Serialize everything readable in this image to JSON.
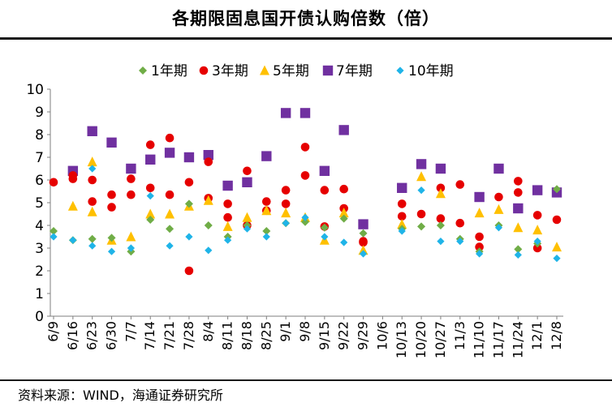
{
  "chart_data": {
    "type": "scatter",
    "title": "各期限固息国开债认购倍数（倍）",
    "categories": [
      "6/9",
      "6/16",
      "6/23",
      "6/30",
      "7/7",
      "7/14",
      "7/21",
      "7/28",
      "8/4",
      "8/11",
      "8/18",
      "8/25",
      "9/1",
      "9/8",
      "9/15",
      "9/22",
      "9/29",
      "10/6",
      "10/13",
      "10/20",
      "10/27",
      "11/3",
      "11/10",
      "11/17",
      "11/24",
      "12/1",
      "12/8"
    ],
    "ylim": [
      0,
      10
    ],
    "yticks": [
      "0",
      "1",
      "2",
      "3",
      "4",
      "5",
      "6",
      "7",
      "8",
      "9",
      "10"
    ],
    "legend_position": "top",
    "colors": {
      "1y": "#70ad47",
      "3y": "#e60000",
      "5y": "#ffc000",
      "7y": "#7030a0",
      "10y": "#1fb4e8"
    },
    "series": [
      {
        "key": "1y",
        "name": "1年期",
        "marker": "diamond",
        "points": [
          [
            0,
            3.75
          ],
          [
            1,
            3.35
          ],
          [
            2,
            3.4
          ],
          [
            3,
            3.45
          ],
          [
            4,
            2.85
          ],
          [
            5,
            4.25
          ],
          [
            6,
            3.85
          ],
          [
            7,
            4.95
          ],
          [
            8,
            4.0
          ],
          [
            9,
            3.5
          ],
          [
            10,
            4.0
          ],
          [
            11,
            3.75
          ],
          [
            12,
            4.1
          ],
          [
            13,
            4.15
          ],
          [
            14,
            3.9
          ],
          [
            15,
            4.3
          ],
          [
            16,
            3.65
          ],
          [
            18,
            3.85
          ],
          [
            19,
            3.95
          ],
          [
            20,
            4.0
          ],
          [
            21,
            3.4
          ],
          [
            22,
            2.85
          ],
          [
            23,
            4.0
          ],
          [
            24,
            2.95
          ],
          [
            25,
            3.2
          ],
          [
            26,
            5.6
          ]
        ]
      },
      {
        "key": "3y",
        "name": "3年期",
        "marker": "circle",
        "points": [
          [
            0,
            5.9
          ],
          [
            1,
            6.05
          ],
          [
            1,
            6.2
          ],
          [
            2,
            6.0
          ],
          [
            2,
            5.05
          ],
          [
            3,
            4.8
          ],
          [
            3,
            5.35
          ],
          [
            4,
            6.05
          ],
          [
            4,
            5.35
          ],
          [
            5,
            5.65
          ],
          [
            5,
            7.55
          ],
          [
            6,
            7.85
          ],
          [
            6,
            5.35
          ],
          [
            7,
            5.9
          ],
          [
            7,
            2.0
          ],
          [
            8,
            6.8
          ],
          [
            8,
            5.2
          ],
          [
            9,
            4.35
          ],
          [
            9,
            4.95
          ],
          [
            10,
            6.4
          ],
          [
            10,
            4.0
          ],
          [
            11,
            5.05
          ],
          [
            11,
            4.65
          ],
          [
            12,
            5.55
          ],
          [
            12,
            4.95
          ],
          [
            13,
            6.2
          ],
          [
            13,
            7.45
          ],
          [
            14,
            5.55
          ],
          [
            14,
            3.95
          ],
          [
            15,
            5.6
          ],
          [
            15,
            4.75
          ],
          [
            16,
            3.3
          ],
          [
            16,
            3.25
          ],
          [
            18,
            4.95
          ],
          [
            18,
            4.4
          ],
          [
            19,
            4.5
          ],
          [
            20,
            5.65
          ],
          [
            20,
            4.3
          ],
          [
            21,
            5.8
          ],
          [
            21,
            4.1
          ],
          [
            22,
            3.5
          ],
          [
            22,
            3.05
          ],
          [
            23,
            5.25
          ],
          [
            24,
            5.45
          ],
          [
            24,
            5.95
          ],
          [
            25,
            3.0
          ],
          [
            25,
            4.45
          ],
          [
            26,
            4.25
          ]
        ]
      },
      {
        "key": "5y",
        "name": "5年期",
        "marker": "triangle",
        "points": [
          [
            1,
            4.85
          ],
          [
            2,
            6.8
          ],
          [
            2,
            4.6
          ],
          [
            3,
            3.35
          ],
          [
            4,
            3.5
          ],
          [
            5,
            4.5
          ],
          [
            6,
            4.5
          ],
          [
            7,
            4.85
          ],
          [
            8,
            5.1
          ],
          [
            9,
            3.95
          ],
          [
            10,
            4.35
          ],
          [
            11,
            4.65
          ],
          [
            12,
            4.55
          ],
          [
            13,
            4.35
          ],
          [
            14,
            3.35
          ],
          [
            15,
            4.55
          ],
          [
            16,
            2.9
          ],
          [
            18,
            4.05
          ],
          [
            19,
            6.15
          ],
          [
            20,
            5.4
          ],
          [
            22,
            4.55
          ],
          [
            23,
            4.7
          ],
          [
            24,
            3.9
          ],
          [
            25,
            3.8
          ],
          [
            26,
            3.05
          ]
        ]
      },
      {
        "key": "7y",
        "name": "7年期",
        "marker": "square",
        "points": [
          [
            1,
            6.4
          ],
          [
            2,
            8.15
          ],
          [
            3,
            7.65
          ],
          [
            4,
            6.5
          ],
          [
            5,
            6.9
          ],
          [
            6,
            7.2
          ],
          [
            7,
            7.0
          ],
          [
            8,
            7.1
          ],
          [
            9,
            5.75
          ],
          [
            10,
            5.9
          ],
          [
            11,
            7.05
          ],
          [
            12,
            8.95
          ],
          [
            13,
            8.95
          ],
          [
            14,
            6.4
          ],
          [
            15,
            8.2
          ],
          [
            16,
            4.05
          ],
          [
            18,
            5.65
          ],
          [
            19,
            6.7
          ],
          [
            20,
            6.5
          ],
          [
            22,
            5.25
          ],
          [
            23,
            6.5
          ],
          [
            24,
            4.75
          ],
          [
            25,
            5.55
          ],
          [
            26,
            5.45
          ]
        ]
      },
      {
        "key": "10y",
        "name": "10年期",
        "marker": "diamond-small",
        "points": [
          [
            0,
            3.5
          ],
          [
            1,
            3.35
          ],
          [
            2,
            6.5
          ],
          [
            2,
            3.1
          ],
          [
            3,
            2.85
          ],
          [
            4,
            3.0
          ],
          [
            5,
            5.3
          ],
          [
            6,
            3.1
          ],
          [
            7,
            3.5
          ],
          [
            8,
            2.9
          ],
          [
            9,
            3.35
          ],
          [
            10,
            3.85
          ],
          [
            11,
            3.5
          ],
          [
            12,
            4.1
          ],
          [
            13,
            4.35
          ],
          [
            14,
            3.5
          ],
          [
            15,
            3.25
          ],
          [
            16,
            2.75
          ],
          [
            18,
            3.75
          ],
          [
            19,
            5.55
          ],
          [
            20,
            3.3
          ],
          [
            21,
            3.3
          ],
          [
            22,
            2.75
          ],
          [
            23,
            3.9
          ],
          [
            24,
            2.7
          ],
          [
            25,
            3.3
          ],
          [
            26,
            2.55
          ]
        ]
      }
    ]
  },
  "source_text": "资料来源：WIND，海通证券研究所"
}
